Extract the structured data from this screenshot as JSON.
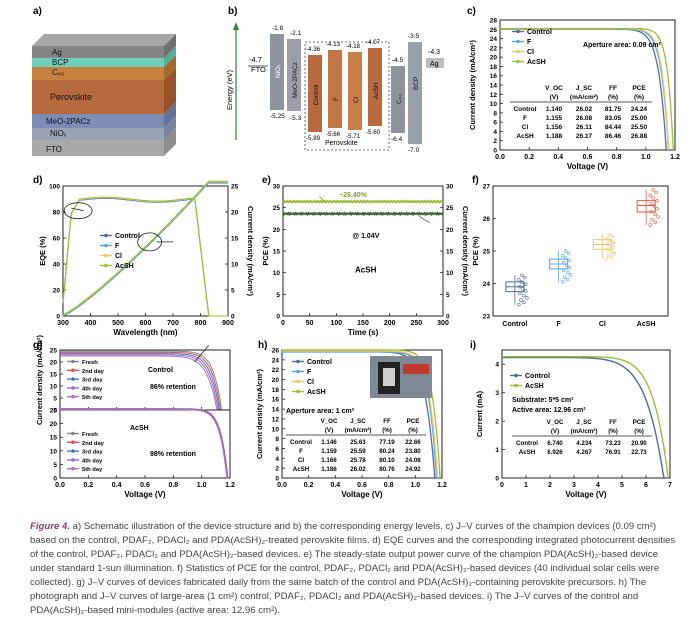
{
  "figure": {
    "caption_lead": "Figure 4.",
    "caption_text": "a) Schematic illustration of the device structure and b) the corresponding energy levels. c) J–V curves of the champion devices (0.09 cm²) based on the control, PDAF₂, PDACl₂ and PDA(AcSH)₂-treated perovskite films. d) EQE curves and the corresponding integrated photocurrent densities of the control, PDAF₂, PDACl₂ and PDA(AcSH)₂-based devices. e) The steady-state output power curve of the champion PDA(AcSH)₂-based device under standard 1-sun illumination. f) Statistics of PCE for the control, PDAF₂, PDACl₂ and PDA(AcSH)₂-based devices (40 individual solar cells were collected). g) J–V curves of devices fabricated daily from the same batch of the control and PDA(AcSH)₂-containing perovskite precursors. h) The photograph and J–V curves of large-area (1 cm²) control, PDAF₂, PDACl₂ and PDA(AcSH)₂-based devices. i) The J–V curves of the control and PDA(AcSH)₂-based mini-modules (active area: 12.96 cm²)."
  },
  "colors": {
    "control": "#4d6f96",
    "F": "#5aa4dc",
    "Cl": "#e8c770",
    "AcSH": "#9bbf3c",
    "fresh": "#888888",
    "day2": "#d9534f",
    "day3": "#4a76c6",
    "day4": "#9a6fc9",
    "day5": "#b26fd0"
  },
  "panel_a": {
    "label": "a)",
    "layers": [
      "Ag",
      "BCP",
      "C₆₀",
      "Perovskite",
      "MeO-2PACz",
      "NiOₓ",
      "FTO"
    ]
  },
  "panel_b": {
    "label": "b)",
    "ylabel": "Energy (eV)",
    "fto": {
      "name": "FTO",
      "val": "-4.7"
    },
    "nio": {
      "name": "NiOₓ",
      "top": "-1.8",
      "bot": "-5.25"
    },
    "meo": {
      "name": "MeO-2PACz",
      "top": "-2.1",
      "bot": "-5.3"
    },
    "perov": [
      {
        "name": "Control",
        "top": "-4.36",
        "bot": "-5.89"
      },
      {
        "name": "F",
        "top": "-4.13",
        "bot": "-5.66"
      },
      {
        "name": "Cl",
        "top": "-4.18",
        "bot": "-5.71"
      },
      {
        "name": "AcSH",
        "top": "-4.07",
        "bot": "-5.60"
      }
    ],
    "perov_label": "Perovskite",
    "c60": {
      "name": "C₆₀",
      "top": "-4.5",
      "bot": "-6.4"
    },
    "bcp": {
      "name": "BCP",
      "top": "-3.5",
      "bot": "-7.0"
    },
    "ag": {
      "name": "Ag",
      "val": "-4.3"
    }
  },
  "panel_c": {
    "label": "c)",
    "chart_data": {
      "type": "line",
      "xlabel": "Voltage (V)",
      "ylabel": "Current density (mA/cm²)",
      "xlim": [
        0,
        1.2
      ],
      "ylim": [
        0,
        28
      ],
      "xticks": [
        "0.0",
        "0.2",
        "0.4",
        "0.6",
        "0.8",
        "1.0",
        "1.2"
      ],
      "yticks": [
        "0",
        "2",
        "4",
        "6",
        "8",
        "10",
        "12",
        "14",
        "16",
        "18",
        "20",
        "22",
        "24",
        "26",
        "28"
      ],
      "annotation": "Aperture area: 0.09 cm²",
      "series": [
        {
          "name": "Control",
          "voc": 1.14,
          "jsc": 26.02
        },
        {
          "name": "F",
          "voc": 1.155,
          "jsc": 26.08
        },
        {
          "name": "Cl",
          "voc": 1.156,
          "jsc": 26.11
        },
        {
          "name": "AcSH",
          "voc": 1.188,
          "jsc": 26.17
        }
      ]
    },
    "table": {
      "headers": [
        "",
        "V_OC",
        "J_SC",
        "FF",
        "PCE"
      ],
      "units": [
        "",
        "(V)",
        "(mA/cm²)",
        "(%)",
        "(%)"
      ],
      "rows": [
        [
          "Control",
          "1.140",
          "26.02",
          "81.75",
          "24.24"
        ],
        [
          "F",
          "1.155",
          "26.08",
          "83.05",
          "25.00"
        ],
        [
          "Cl",
          "1.156",
          "26.11",
          "84.44",
          "25.50"
        ],
        [
          "AcSH",
          "1.188",
          "26.17",
          "86.46",
          "26.88"
        ]
      ]
    }
  },
  "panel_d": {
    "label": "d)",
    "chart_data": {
      "type": "line",
      "xlabel": "Wavelength (nm)",
      "ylabel": "EQE (%)",
      "ylabel2": "Current density (mA/cm²)",
      "xlim": [
        300,
        900
      ],
      "ylim": [
        0,
        100
      ],
      "y2lim": [
        0,
        25
      ],
      "xticks": [
        "300",
        "400",
        "500",
        "600",
        "700",
        "800",
        "900"
      ],
      "yticks": [
        "0",
        "20",
        "40",
        "60",
        "80",
        "100"
      ],
      "y2ticks": [
        "0",
        "5",
        "10",
        "15",
        "20",
        "25"
      ],
      "series": [
        {
          "name": "Control"
        },
        {
          "name": "F"
        },
        {
          "name": "Cl"
        },
        {
          "name": "AcSH"
        }
      ]
    }
  },
  "panel_e": {
    "label": "e)",
    "chart_data": {
      "type": "line",
      "xlabel": "Time (s)",
      "ylabel": "PCE (%)",
      "ylabel2": "Current density (mA/cm²)",
      "xlim": [
        0,
        300
      ],
      "ylim": [
        0,
        30
      ],
      "y2lim": [
        0,
        30
      ],
      "xticks": [
        "0",
        "50",
        "100",
        "150",
        "200",
        "250",
        "300"
      ],
      "yticks": [
        "0",
        "5",
        "10",
        "15",
        "20",
        "25",
        "30"
      ],
      "y2ticks": [
        "0",
        "5",
        "10",
        "15",
        "20",
        "25",
        "30"
      ],
      "pce_value": 26.4,
      "j_value": 23.6,
      "pce_label": "~26.40%",
      "bias_label": "@ 1.04V",
      "device_label": "AcSH"
    }
  },
  "panel_f": {
    "label": "f)",
    "chart_data": {
      "type": "box",
      "ylabel": "PCE (%)",
      "ylim": [
        23,
        27
      ],
      "yticks": [
        "23",
        "24",
        "25",
        "26",
        "27"
      ],
      "categories": [
        "Control",
        "F",
        "Cl",
        "AcSH"
      ],
      "medians": [
        23.9,
        24.6,
        25.2,
        26.4
      ],
      "q1": [
        23.75,
        24.45,
        25.05,
        26.2
      ],
      "q3": [
        24.05,
        24.75,
        25.35,
        26.55
      ],
      "min": [
        23.35,
        24.05,
        24.75,
        25.8
      ],
      "max": [
        24.25,
        25.0,
        25.5,
        26.88
      ]
    }
  },
  "panel_g": {
    "label": "g)",
    "chart_data": {
      "type": "line",
      "xlabel": "Voltage (V)",
      "ylabel": "Current density (mA/cm²)",
      "xlim": [
        0,
        1.2
      ],
      "xticks": [
        "0.0",
        "0.2",
        "0.4",
        "0.6",
        "0.8",
        "1.0",
        "1.2"
      ],
      "yticks_top": [
        "0",
        "5",
        "10",
        "15",
        "20",
        "25"
      ],
      "yticks_bot": [
        "0",
        "5",
        "10",
        "15",
        "20",
        "25"
      ],
      "top": {
        "name": "Control",
        "retention": "86% retention"
      },
      "bottom": {
        "name": "AcSH",
        "retention": "98% retention"
      },
      "legend": [
        "Fresh",
        "2nd day",
        "3rd day",
        "4th day",
        "5th day"
      ]
    }
  },
  "panel_h": {
    "label": "h)",
    "chart_data": {
      "type": "line",
      "xlabel": "Voltage (V)",
      "ylabel": "Current density (mA/cm²)",
      "xlim": [
        0,
        1.2
      ],
      "xticks": [
        "0.0",
        "0.2",
        "0.4",
        "0.6",
        "0.8",
        "1.0",
        "1.2"
      ],
      "yticks": [
        "0",
        "2",
        "4",
        "6",
        "8",
        "10",
        "12",
        "14",
        "16",
        "18",
        "20",
        "22",
        "24",
        "26"
      ],
      "annotation": "Aperture area: 1 cm²",
      "series": [
        {
          "name": "Control",
          "voc": 1.146,
          "jsc": 25.63
        },
        {
          "name": "F",
          "voc": 1.159,
          "jsc": 25.59
        },
        {
          "name": "Cl",
          "voc": 1.166,
          "jsc": 25.78
        },
        {
          "name": "AcSH",
          "voc": 1.186,
          "jsc": 26.02
        }
      ]
    },
    "table": {
      "headers": [
        "",
        "V_OC",
        "J_SC",
        "FF",
        "PCE"
      ],
      "units": [
        "",
        "(V)",
        "(mA/cm²)",
        "(%)",
        "(%)"
      ],
      "rows": [
        [
          "Control",
          "1.146",
          "25.63",
          "77.19",
          "22.66"
        ],
        [
          "F",
          "1.159",
          "25.59",
          "80.24",
          "23.80"
        ],
        [
          "Cl",
          "1.166",
          "25.78",
          "80.10",
          "24.08"
        ],
        [
          "AcSH",
          "1.186",
          "26.02",
          "80.76",
          "24.92"
        ]
      ]
    }
  },
  "panel_i": {
    "label": "i)",
    "chart_data": {
      "type": "line",
      "xlabel": "Voltage (V)",
      "ylabel": "Current (mA)",
      "xlim": [
        0,
        7
      ],
      "ylim": [
        0,
        4.5
      ],
      "xticks": [
        "0",
        "1",
        "2",
        "3",
        "4",
        "5",
        "6",
        "7"
      ],
      "yticks": [
        "0",
        "1",
        "2",
        "3",
        "4"
      ],
      "substrate": "Substrate:  5*5 cm²",
      "active_area": "Active area:  12.96 cm²",
      "series": [
        {
          "name": "Control",
          "voc": 6.74,
          "isc": 4.234
        },
        {
          "name": "AcSH",
          "voc": 6.926,
          "isc": 4.267
        }
      ]
    },
    "table": {
      "headers": [
        "",
        "V_OC",
        "J_SC",
        "FF",
        "PCE"
      ],
      "units": [
        "",
        "(V)",
        "(mA/cm²)",
        "(%)",
        "(%)"
      ],
      "rows": [
        [
          "Control",
          "6.740",
          "4.234",
          "73.23",
          "20.90"
        ],
        [
          "AcSH",
          "6.926",
          "4.267",
          "76.91",
          "22.73"
        ]
      ]
    }
  }
}
